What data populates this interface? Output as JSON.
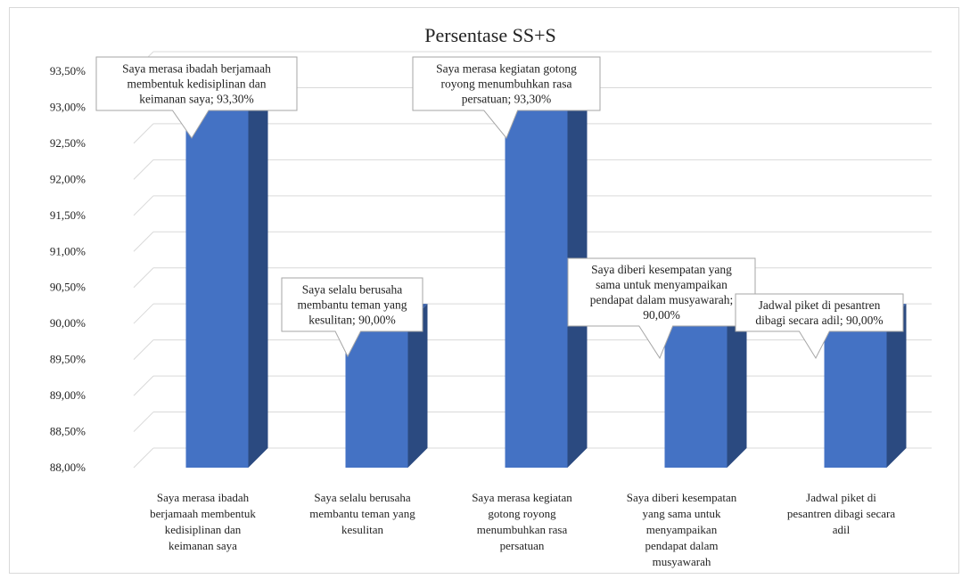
{
  "chart_data": {
    "type": "bar",
    "title": "Persentase SS+S",
    "xlabel": "",
    "ylabel": "",
    "ylim": [
      88.0,
      93.5
    ],
    "y_ticks": [
      "88,00%",
      "88,50%",
      "89,00%",
      "89,50%",
      "90,00%",
      "90,50%",
      "91,00%",
      "91,50%",
      "92,00%",
      "92,50%",
      "93,00%",
      "93,50%"
    ],
    "grid": true,
    "legend": "none",
    "categories": [
      "Saya merasa ibadah berjamaah membentuk kedisiplinan dan keimanan saya",
      "Saya selalu berusaha membantu teman yang kesulitan",
      "Saya merasa kegiatan gotong royong menumbuhkan rasa persatuan",
      "Saya diberi kesempatan yang sama untuk menyampaikan pendapat dalam musyawarah",
      "Jadwal piket di pesantren dibagi secara adil"
    ],
    "category_lines": [
      [
        "Saya merasa ibadah",
        "berjamaah membentuk",
        "kedisiplinan dan",
        "keimanan saya"
      ],
      [
        "Saya selalu berusaha",
        "membantu teman yang",
        "kesulitan"
      ],
      [
        "Saya merasa kegiatan",
        "gotong royong",
        "menumbuhkan rasa",
        "persatuan"
      ],
      [
        "Saya diberi kesempatan",
        "yang sama untuk",
        "menyampaikan",
        "pendapat dalam",
        "musyawarah"
      ],
      [
        "Jadwal piket di",
        "pesantren dibagi secara",
        "adil"
      ]
    ],
    "values": [
      93.3,
      90.0,
      93.3,
      90.0,
      90.0
    ],
    "data_labels": [
      [
        "Saya merasa ibadah berjamaah",
        "membentuk kedisiplinan dan",
        "keimanan saya; 93,30%"
      ],
      [
        "Saya selalu berusaha",
        "membantu teman yang",
        "kesulitan; 90,00%"
      ],
      [
        "Saya merasa kegiatan gotong",
        "royong menumbuhkan rasa",
        "persatuan; 93,30%"
      ],
      [
        "Saya diberi kesempatan yang",
        "sama untuk menyampaikan",
        "pendapat dalam musyawarah;",
        "90,00%"
      ],
      [
        "Jadwal piket di pesantren",
        "dibagi secara adil; 90,00%"
      ]
    ],
    "colors": {
      "front": "#4472c4",
      "side": "#2b4a80",
      "top": "#3a62ad",
      "grid": "#d9d9d9",
      "text": "#222222"
    }
  }
}
